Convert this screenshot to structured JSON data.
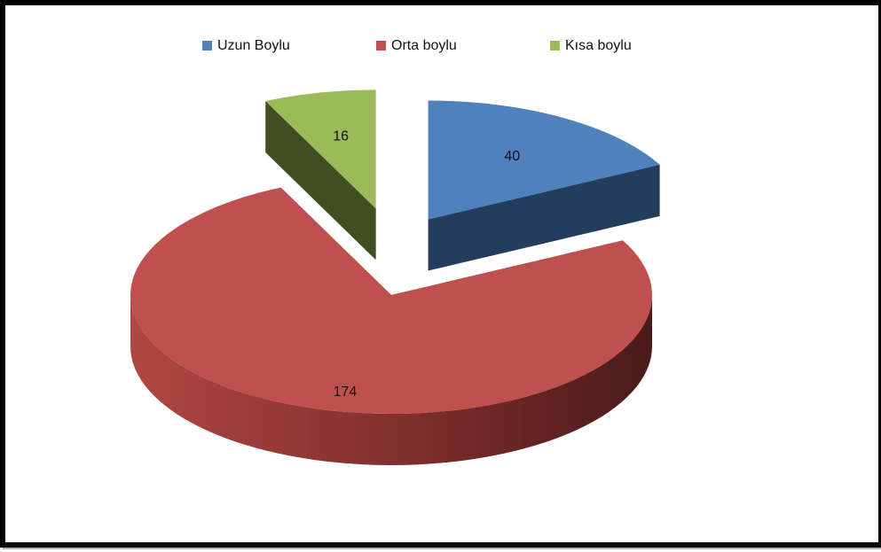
{
  "chart_data": {
    "type": "pie",
    "style": "3d-exploded",
    "legend_position": "top",
    "slices": [
      {
        "name": "Uzun Boylu",
        "value": 40,
        "color": "#4f81bd",
        "side_color": "#243c5e",
        "exploded": true
      },
      {
        "name": "Orta boylu",
        "value": 174,
        "color": "#c0504d",
        "side_color": "#5e2422",
        "exploded": false
      },
      {
        "name": "Kısa boylu",
        "value": 16,
        "color": "#9bbb59",
        "side_color": "#3f4f22",
        "exploded": true
      }
    ]
  }
}
